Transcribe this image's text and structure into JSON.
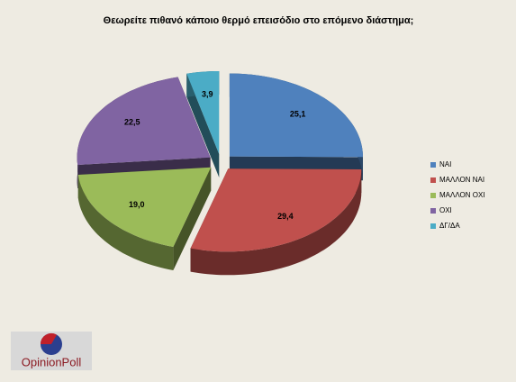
{
  "chart_data": {
    "type": "pie3d",
    "title": "Θεωρείτε πιθανό κάποιο θερμό επεισόδιο στο επόμενο διάστημα;",
    "categories": [
      "ΝΑΙ",
      "ΜΑΛΛΟΝ ΝΑΙ",
      "ΜΑΛΛΟΝ ΟΧΙ",
      "ΟΧΙ",
      "ΔΓ/ΔΑ"
    ],
    "values": [
      25.1,
      29.4,
      19.0,
      22.5,
      3.9
    ],
    "value_labels": [
      "25,1",
      "29,4",
      "19,0",
      "22,5",
      "3,9"
    ],
    "colors": [
      "#4f81bd",
      "#c0504d",
      "#9bbb59",
      "#8064a2",
      "#4bacc6"
    ],
    "legend": "right"
  },
  "logo": {
    "text": "OpinionPoll"
  }
}
